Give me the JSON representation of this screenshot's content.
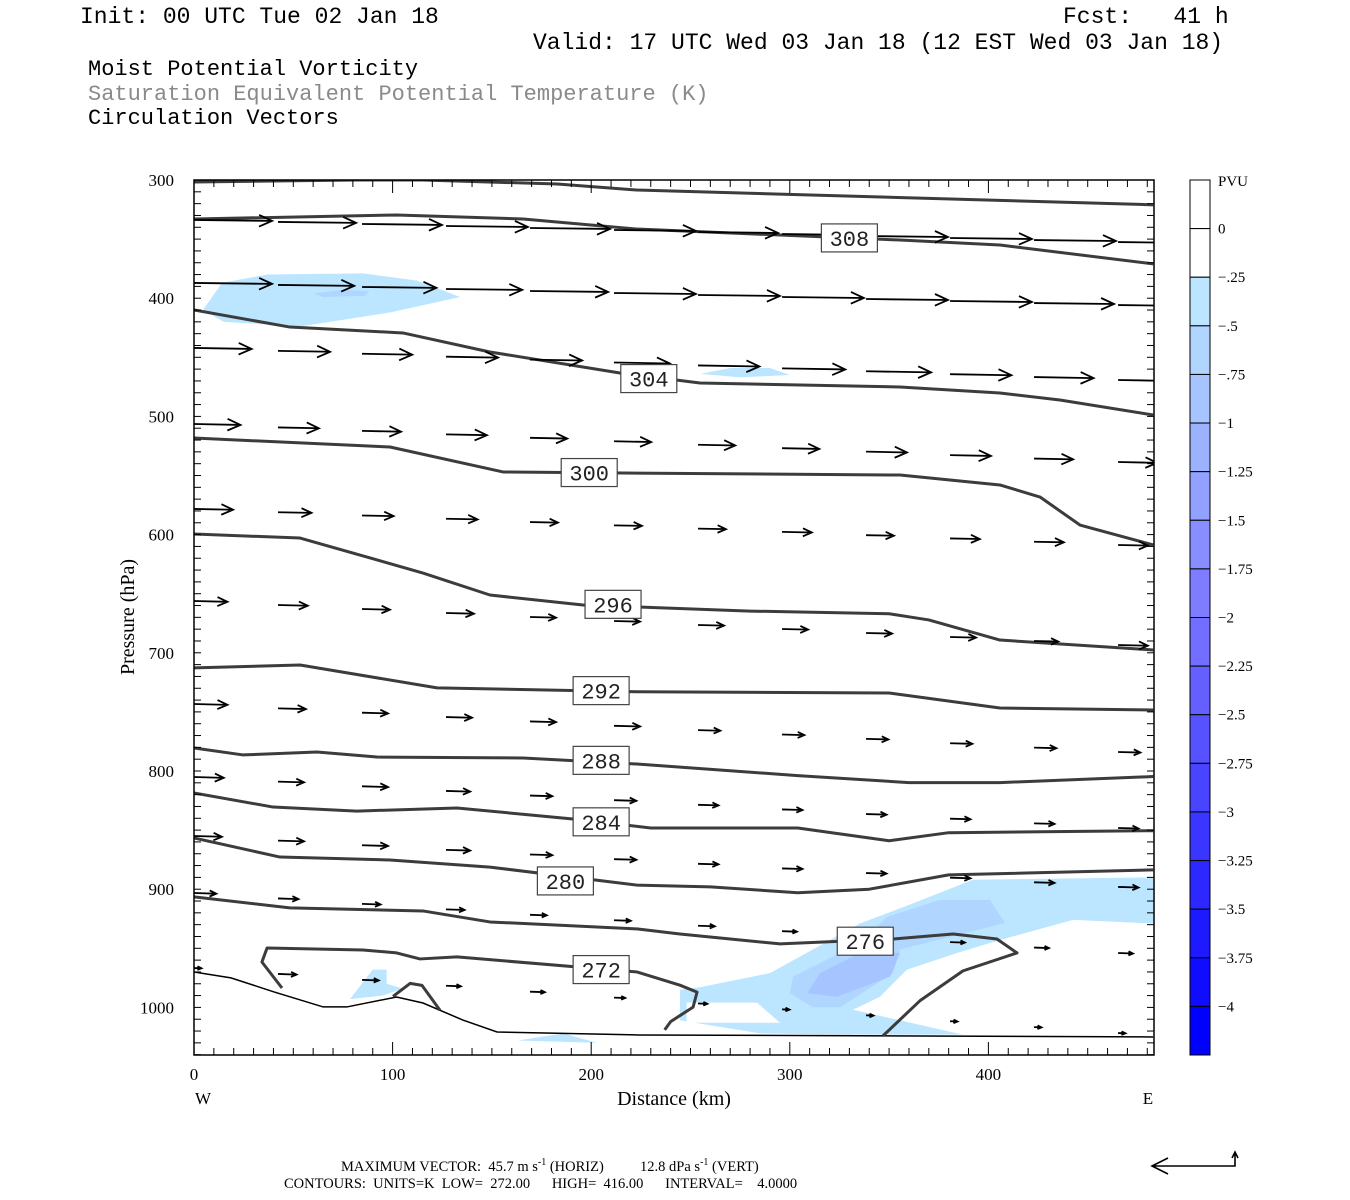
{
  "header": {
    "init": "Init: 00 UTC Tue 02 Jan 18",
    "fcst": "Fcst:   41 h",
    "valid": "Valid: 17 UTC Wed 03 Jan 18 (12 EST Wed 03 Jan 18)"
  },
  "legend": {
    "line1": "Moist Potential Vorticity",
    "line2": "Saturation Equivalent Potential Temperature (K)",
    "line3": "Circulation Vectors",
    "line2_color": "#8a8a8a"
  },
  "footer": {
    "max_vector_label": "MAXIMUM VECTOR:",
    "horiz_value": "45.7 m s",
    "horiz_unit_exp": "-1",
    "horiz_label": "(HORIZ)",
    "vert_value": "12.8 dPa s",
    "vert_unit_exp": "-1",
    "vert_label": "(VERT)",
    "contours": "CONTOURS:  UNITS=K  LOW=  272.00      HIGH=  416.00      INTERVAL=    4.0000"
  },
  "chart_data": {
    "type": "cross-section",
    "xlabel": "Distance (km)",
    "ylabel": "Pressure (hPa)",
    "x_left_label": "W",
    "x_right_label": "E",
    "xlim": [
      0,
      483
    ],
    "ylim": [
      300,
      1041
    ],
    "xticks": [
      "0",
      "100",
      "200",
      "300",
      "400"
    ],
    "xtick_values": [
      0,
      100,
      200,
      300,
      400
    ],
    "yticks": [
      "300",
      "400",
      "500",
      "600",
      "700",
      "800",
      "900",
      "1000"
    ],
    "ytick_values": [
      300,
      400,
      500,
      600,
      700,
      800,
      900,
      1000
    ],
    "colorbar": {
      "title": "PVU",
      "labels": [
        "0",
        "-.25",
        "-.5",
        "-.75",
        "-1",
        "-1.25",
        "-1.5",
        "-1.75",
        "-2",
        "-2.25",
        "-2.5",
        "-2.75",
        "-3",
        "-3.25",
        "-3.5",
        "-3.75",
        "-4"
      ],
      "colors": [
        "#ffffff",
        "#ffffff",
        "#bce6ff",
        "#b0d6ff",
        "#a6c4ff",
        "#9cb2ff",
        "#92a0ff",
        "#888eff",
        "#7e7cff",
        "#726eff",
        "#6460ff",
        "#5652ff",
        "#4844ff",
        "#3a36ff",
        "#2c28ff",
        "#1e1aff",
        "#100cff",
        "#0000ff"
      ]
    },
    "pv_shading": [
      {
        "level": "-.25",
        "color": "#bce6ff",
        "points": [
          [
            4.5,
            410
          ],
          [
            14.1,
            387
          ],
          [
            36.8,
            380
          ],
          [
            85,
            379
          ],
          [
            112,
            385
          ],
          [
            134,
            399
          ],
          [
            99,
            412
          ],
          [
            53,
            424
          ],
          [
            15,
            420
          ]
        ]
      },
      {
        "level": "-.5",
        "color": "#b0d6ff",
        "points": [
          [
            60,
            396
          ],
          [
            75,
            393
          ],
          [
            88,
            394
          ],
          [
            86,
            398
          ],
          [
            65,
            399
          ]
        ]
      },
      {
        "level": "-.25",
        "color": "#bce6ff",
        "points": [
          [
            255,
            464
          ],
          [
            270,
            459
          ],
          [
            290,
            459
          ],
          [
            300,
            465
          ],
          [
            275,
            467
          ]
        ]
      },
      {
        "level": "-.25",
        "color": "#bce6ff",
        "points": [
          [
            244.7,
            985
          ],
          [
            254.8,
            983
          ],
          [
            290,
            971
          ],
          [
            335.3,
            929
          ],
          [
            362,
            912
          ],
          [
            392.2,
            892
          ],
          [
            483,
            890
          ],
          [
            483,
            929
          ],
          [
            442.6,
            926
          ],
          [
            405.8,
            943
          ],
          [
            384.2,
            954
          ],
          [
            359,
            968
          ],
          [
            345.4,
            991
          ],
          [
            331.8,
            1002
          ],
          [
            387.2,
            1023
          ],
          [
            328.8,
            1023
          ],
          [
            285,
            1022
          ],
          [
            244.7,
            1011
          ]
        ]
      },
      {
        "level": "-.5",
        "color": "#b0d6ff",
        "points": [
          [
            300,
            988
          ],
          [
            301.6,
            974
          ],
          [
            335.3,
            945.5
          ],
          [
            348.9,
            923.5
          ],
          [
            375.6,
            909
          ],
          [
            400.8,
            909
          ],
          [
            408.4,
            928.6
          ],
          [
            355.5,
            951
          ],
          [
            352,
            971
          ],
          [
            325.3,
            1000
          ],
          [
            311.7,
            1000
          ]
        ]
      },
      {
        "level": "-.75",
        "color": "#a6c4ff",
        "points": [
          [
            308.7,
            988
          ],
          [
            315.2,
            971
          ],
          [
            338.9,
            951
          ],
          [
            355.5,
            954
          ],
          [
            350.5,
            974
          ],
          [
            323.8,
            991
          ]
        ]
      },
      {
        "level": "-.25",
        "color": "#bce6ff",
        "points": [
          [
            78.5,
            993
          ],
          [
            90,
            968
          ],
          [
            97,
            968
          ],
          [
            97,
            980
          ],
          [
            105,
            984
          ],
          [
            95,
            990
          ]
        ]
      },
      {
        "level": "-.25",
        "color": "#bce6ff",
        "points": [
          [
            163,
            1028
          ],
          [
            186,
            1022
          ],
          [
            203,
            1030
          ]
        ]
      }
    ],
    "pv_holes": [
      [
        [
          248,
          996
        ],
        [
          283.5,
          996
        ],
        [
          295,
          1013
        ],
        [
          248,
          1013
        ]
      ]
    ],
    "contours": [
      {
        "level": "312",
        "label": "",
        "points": [
          [
            0,
            301.7
          ],
          [
            82,
            300
          ],
          [
            115,
            300
          ],
          [
            183,
            303.4
          ],
          [
            223,
            308.5
          ],
          [
            483,
            321
          ]
        ]
      },
      {
        "level": "308",
        "label": "308",
        "label_at": [
          330,
          349
        ],
        "points": [
          [
            0,
            333
          ],
          [
            102,
            329.6
          ],
          [
            165.7,
            333
          ],
          [
            223,
            341.5
          ],
          [
            355.5,
            350.8
          ],
          [
            405.8,
            355
          ],
          [
            483,
            371
          ]
        ]
      },
      {
        "level": "304",
        "label": "304",
        "label_at": [
          229,
          468
        ],
        "points": [
          [
            0,
            410
          ],
          [
            48.3,
            424.4
          ],
          [
            105.2,
            429.4
          ],
          [
            149,
            445.5
          ],
          [
            214.5,
            463.3
          ],
          [
            254.8,
            471.7
          ],
          [
            355.5,
            475.1
          ],
          [
            405.8,
            480.2
          ],
          [
            436,
            486.1
          ],
          [
            483,
            498.8
          ]
        ]
      },
      {
        "level": "300",
        "label": "300",
        "label_at": [
          199,
          547.5
        ],
        "points": [
          [
            0,
            518.3
          ],
          [
            98.7,
            525.9
          ],
          [
            155.6,
            547
          ],
          [
            216,
            547.9
          ],
          [
            355.5,
            549.6
          ],
          [
            405.8,
            558
          ],
          [
            426,
            568.2
          ],
          [
            446.1,
            591.9
          ],
          [
            483,
            608.8
          ]
        ]
      },
      {
        "level": "296",
        "label": "296",
        "label_at": [
          211,
          659
        ],
        "points": [
          [
            0,
            599.5
          ],
          [
            53.4,
            602.9
          ],
          [
            115.3,
            632.5
          ],
          [
            149,
            651.1
          ],
          [
            195.9,
            659.6
          ],
          [
            280,
            664.7
          ],
          [
            350,
            667
          ],
          [
            370,
            672.2
          ],
          [
            405.8,
            689.2
          ],
          [
            483,
            697.6
          ]
        ]
      },
      {
        "level": "292",
        "label": "292",
        "label_at": [
          205,
          732
        ],
        "points": [
          [
            0,
            712.8
          ],
          [
            53.4,
            710.3
          ],
          [
            122.4,
            729.7
          ],
          [
            223,
            733
          ],
          [
            350,
            734
          ],
          [
            405.8,
            746.7
          ],
          [
            483,
            748.4
          ]
        ]
      },
      {
        "level": "288",
        "label": "288",
        "label_at": [
          205,
          791
        ],
        "points": [
          [
            0,
            780.5
          ],
          [
            24.7,
            786.4
          ],
          [
            61.9,
            783.9
          ],
          [
            92.1,
            788.2
          ],
          [
            165.7,
            789
          ],
          [
            223,
            794.1
          ],
          [
            304,
            803.9
          ],
          [
            360,
            809.8
          ],
          [
            405.8,
            809.8
          ],
          [
            483,
            804.7
          ]
        ]
      },
      {
        "level": "284",
        "label": "284",
        "label_at": [
          205,
          843
        ],
        "points": [
          [
            0,
            818.6
          ],
          [
            39.8,
            830.5
          ],
          [
            82,
            833.9
          ],
          [
            132.4,
            831.3
          ],
          [
            190.8,
            840.6
          ],
          [
            230,
            848.2
          ],
          [
            304,
            848.2
          ],
          [
            350,
            859
          ],
          [
            380,
            852.2
          ],
          [
            483,
            850.5
          ]
        ]
      },
      {
        "level": "280",
        "label": "280",
        "label_at": [
          187,
          893
        ],
        "points": [
          [
            0,
            856.7
          ],
          [
            43.3,
            872.8
          ],
          [
            98.7,
            875.3
          ],
          [
            149,
            881.3
          ],
          [
            223,
            896.5
          ],
          [
            260,
            898
          ],
          [
            304,
            903
          ],
          [
            340,
            900
          ],
          [
            380,
            887.9
          ],
          [
            483,
            883.7
          ]
        ]
      },
      {
        "level": "276",
        "label": "276",
        "label_at": [
          338,
          944
        ],
        "points": [
          [
            0,
            906.5
          ],
          [
            48.3,
            915.8
          ],
          [
            115.3,
            918.4
          ],
          [
            149,
            927.7
          ],
          [
            223,
            933.6
          ],
          [
            244.7,
            937.9
          ],
          [
            295.1,
            946.3
          ],
          [
            352,
            942.1
          ],
          [
            382.2,
            937.9
          ],
          [
            404.3,
            942.1
          ],
          [
            414.4,
            953.9
          ],
          [
            387.2,
            969.1
          ],
          [
            365.5,
            994.4
          ],
          [
            346.9,
            1024.1
          ]
        ]
      },
      {
        "level": "272",
        "label": "272",
        "label_at": [
          205,
          968
        ],
        "points": [
          [
            44.3,
            983.6
          ],
          [
            34.2,
            961.6
          ],
          [
            36.8,
            949.7
          ],
          [
            85.1,
            951.4
          ],
          [
            102,
            953.9
          ],
          [
            113.8,
            959
          ],
          [
            132.4,
            957.3
          ],
          [
            223,
            970
          ],
          [
            244.7,
            981.2
          ],
          [
            253.3,
            987.1
          ],
          [
            251.3,
            999.8
          ],
          [
            240,
            1012
          ],
          [
            237,
            1019
          ]
        ]
      },
      {
        "level": "272",
        "label": "",
        "points": [
          [
            100.2,
            990.7
          ],
          [
            108.8,
            979.7
          ],
          [
            114.8,
            981.4
          ],
          [
            123.9,
            1002.5
          ]
        ]
      }
    ],
    "ground": [
      [
        0,
        970
      ],
      [
        18.6,
        975
      ],
      [
        40.3,
        986.9
      ],
      [
        65,
        999.6
      ],
      [
        77,
        999.6
      ],
      [
        102,
        991.2
      ],
      [
        115.3,
        996.3
      ],
      [
        135.4,
        1010.7
      ],
      [
        152.6,
        1020.8
      ],
      [
        223,
        1023.3
      ],
      [
        483,
        1025
      ]
    ],
    "vectors": {
      "units": "m/s",
      "reference_speed": 45.7,
      "x_km": [
        0,
        42.3,
        84.6,
        126.9,
        169.2,
        211.5,
        253.8,
        296.1,
        338.4,
        380.7,
        423,
        465.3
      ],
      "rows": [
        {
          "p_west": 333.8,
          "p_east": 352.5,
          "speed": [
            42,
            42,
            43,
            44,
            43,
            44,
            43,
            44,
            44,
            44,
            44,
            44
          ]
        },
        {
          "p_west": 387.1,
          "p_east": 405.8,
          "speed": [
            42,
            41,
            40,
            41,
            42,
            44,
            44,
            44,
            44,
            44,
            43,
            42
          ]
        },
        {
          "p_west": 442.1,
          "p_east": 469.2,
          "speed": [
            31,
            28,
            27,
            28,
            28,
            30,
            33,
            34,
            35,
            33,
            32,
            30
          ]
        },
        {
          "p_west": 506.4,
          "p_east": 538.6,
          "speed": [
            25,
            22,
            21,
            22,
            20,
            20,
            20,
            20,
            22,
            22,
            21,
            21
          ]
        },
        {
          "p_west": 578.3,
          "p_east": 608.8,
          "speed": [
            21,
            18,
            17,
            17,
            15,
            15,
            15,
            16,
            15,
            16,
            16,
            16
          ]
        },
        {
          "p_west": 656.2,
          "p_east": 693.4,
          "speed": [
            18,
            16,
            15,
            15,
            14,
            14,
            14,
            14,
            14,
            14,
            13,
            16
          ]
        },
        {
          "p_west": 743.3,
          "p_east": 783.9,
          "speed": [
            18,
            15,
            14,
            14,
            14,
            14,
            12,
            12,
            12,
            12,
            12,
            12
          ]
        },
        {
          "p_west": 805.1,
          "p_east": 848.2,
          "speed": [
            16,
            14,
            14,
            13,
            12,
            12,
            11,
            11,
            11,
            11,
            11,
            11
          ]
        },
        {
          "p_west": 855.0,
          "p_east": 898.1,
          "speed": [
            15,
            14,
            14,
            13,
            12,
            12,
            11,
            11,
            11,
            11,
            11,
            11
          ]
        },
        {
          "p_west": 903.2,
          "p_east": 954.0,
          "speed": [
            12,
            11,
            10,
            10,
            9,
            9,
            9,
            8,
            8,
            8,
            8,
            8
          ]
        },
        {
          "p_west": 966.7,
          "p_east": 1021.7,
          "speed": [
            4,
            10,
            9,
            8,
            8,
            6,
            5,
            4,
            4,
            4,
            4,
            4
          ]
        }
      ]
    }
  }
}
